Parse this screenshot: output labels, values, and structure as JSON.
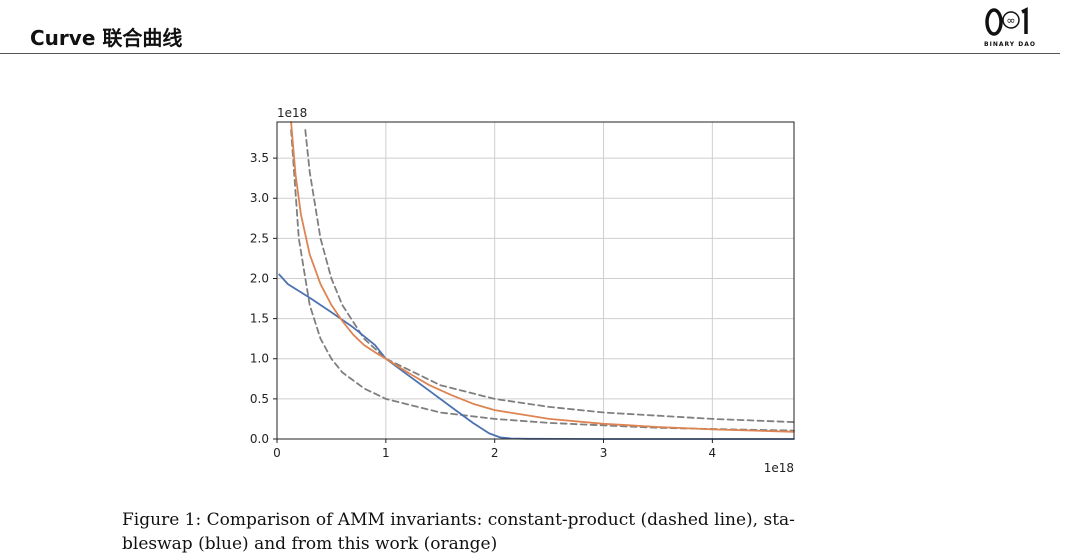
{
  "header": {
    "title": "Curve 联合曲线",
    "logo_text": "BINARY DAO",
    "logo_glyph": "∞"
  },
  "chart_data": {
    "type": "line",
    "title": "",
    "xlabel": "",
    "ylabel": "",
    "x_offset_label": "1e18",
    "y_offset_label": "1e18",
    "xlim": [
      0,
      4.75
    ],
    "ylim": [
      0,
      3.95
    ],
    "x_ticks": [
      0,
      1,
      2,
      3,
      4
    ],
    "x_tick_labels": [
      "0",
      "1",
      "2",
      "3",
      "4"
    ],
    "y_ticks": [
      0,
      0.5,
      1.0,
      1.5,
      2.0,
      2.5,
      3.0,
      3.5
    ],
    "y_tick_labels": [
      "0.0",
      "0.5",
      "1.0",
      "1.5",
      "2.0",
      "2.5",
      "3.0",
      "3.5"
    ],
    "grid": true,
    "series": [
      {
        "style": "dashed",
        "color": "#7f7f7f",
        "x": [
          0.13,
          0.2,
          0.3,
          0.4,
          0.5,
          0.6,
          0.8,
          1.0,
          1.5,
          2.0,
          2.5,
          3.0,
          3.5,
          4.0,
          4.75
        ],
        "y": [
          3.85,
          2.5,
          1.67,
          1.25,
          1.0,
          0.83,
          0.63,
          0.5,
          0.33,
          0.25,
          0.2,
          0.17,
          0.14,
          0.125,
          0.105
        ]
      },
      {
        "style": "dashed",
        "color": "#7f7f7f",
        "x": [
          0.26,
          0.3,
          0.4,
          0.5,
          0.6,
          0.8,
          1.0,
          1.5,
          2.0,
          2.5,
          3.0,
          3.5,
          4.0,
          4.75
        ],
        "y": [
          3.85,
          3.33,
          2.5,
          2.0,
          1.67,
          1.25,
          1.0,
          0.67,
          0.5,
          0.4,
          0.33,
          0.29,
          0.25,
          0.21
        ]
      },
      {
        "style": "solid",
        "color": "#4c72b0",
        "x": [
          0.02,
          0.1,
          0.3,
          0.5,
          0.7,
          0.9,
          1.0,
          1.2,
          1.4,
          1.6,
          1.8,
          1.95,
          2.05,
          2.15,
          2.3,
          2.6,
          3.0,
          4.0,
          4.75
        ],
        "y": [
          2.05,
          1.93,
          1.76,
          1.58,
          1.39,
          1.17,
          1.0,
          0.8,
          0.6,
          0.4,
          0.2,
          0.07,
          0.02,
          0.006,
          0.002,
          0.001,
          0.0,
          0.0,
          0.0
        ]
      },
      {
        "style": "solid",
        "color": "#dd8452",
        "x": [
          0.13,
          0.17,
          0.22,
          0.3,
          0.4,
          0.5,
          0.6,
          0.7,
          0.8,
          0.9,
          1.0,
          1.2,
          1.4,
          1.6,
          1.8,
          2.0,
          2.5,
          3.0,
          3.5,
          4.0,
          4.75
        ],
        "y": [
          3.95,
          3.3,
          2.8,
          2.3,
          1.93,
          1.67,
          1.47,
          1.3,
          1.17,
          1.08,
          1.0,
          0.83,
          0.67,
          0.55,
          0.44,
          0.36,
          0.25,
          0.19,
          0.15,
          0.12,
          0.09
        ]
      }
    ]
  },
  "caption": {
    "line1": "Figure 1: Comparison of AMM invariants: constant-product (dashed line), sta-",
    "line2": "bleswap (blue) and from this work (orange)"
  }
}
